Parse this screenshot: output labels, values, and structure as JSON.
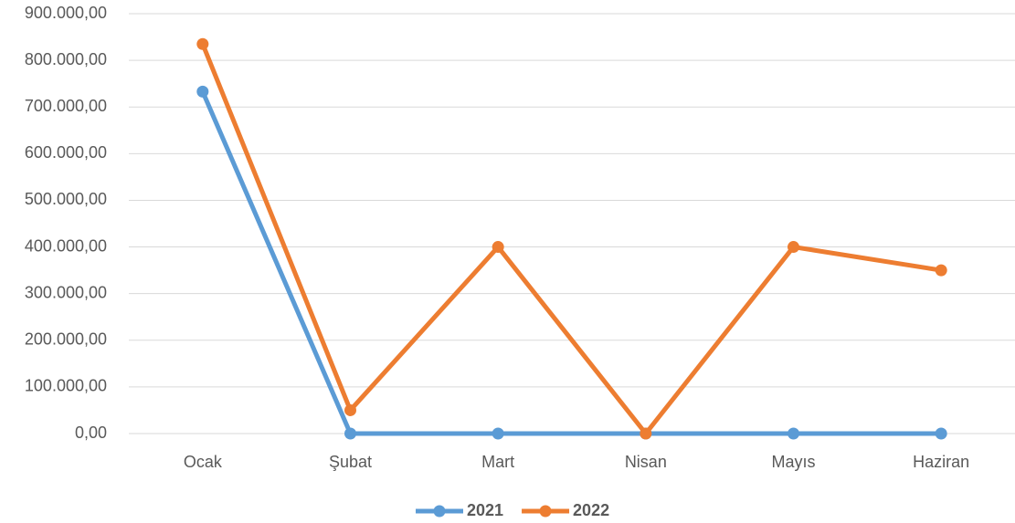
{
  "chart_data": {
    "type": "line",
    "categories": [
      "Ocak",
      "Şubat",
      "Mart",
      "Nisan",
      "Mayıs",
      "Haziran"
    ],
    "series": [
      {
        "name": "2021",
        "color": "#5b9bd5",
        "values": [
          733000,
          0,
          0,
          0,
          0,
          0
        ]
      },
      {
        "name": "2022",
        "color": "#ed7d31",
        "values": [
          835000,
          50000,
          400000,
          0,
          400000,
          350000
        ]
      }
    ],
    "ylim": [
      0,
      900000
    ],
    "yticks": [
      {
        "value": 0,
        "label": "0,00"
      },
      {
        "value": 100000,
        "label": "100.000,00"
      },
      {
        "value": 200000,
        "label": "200.000,00"
      },
      {
        "value": 300000,
        "label": "300.000,00"
      },
      {
        "value": 400000,
        "label": "400.000,00"
      },
      {
        "value": 500000,
        "label": "500.000,00"
      },
      {
        "value": 600000,
        "label": "600.000,00"
      },
      {
        "value": 700000,
        "label": "700.000,00"
      },
      {
        "value": 800000,
        "label": "800.000,00"
      },
      {
        "value": 900000,
        "label": "900.000,00"
      }
    ],
    "grid": true,
    "legend": "bottom"
  }
}
